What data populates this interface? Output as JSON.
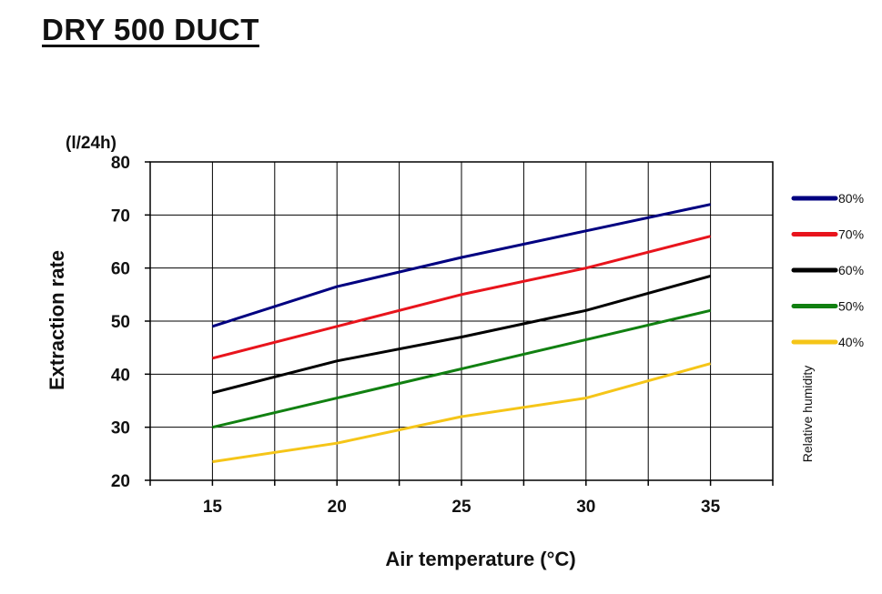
{
  "page": {
    "title": "DRY 500 DUCT"
  },
  "chart_data": {
    "type": "line",
    "title": "DRY 500 DUCT",
    "xlabel": "Air temperature (°C)",
    "ylabel": "Extraction rate",
    "yunit": "(l/24h)",
    "legend_title": "Relative humidity",
    "legend_position": "right",
    "grid": true,
    "x": [
      15,
      20,
      25,
      30,
      35
    ],
    "xlim": [
      12.5,
      37.5
    ],
    "ylim": [
      20,
      80
    ],
    "xticks": [
      "15",
      "20",
      "25",
      "30",
      "35"
    ],
    "yticks": [
      "20",
      "30",
      "40",
      "50",
      "60",
      "70",
      "80"
    ],
    "series": [
      {
        "name": "80%",
        "color": "#000080",
        "values": [
          49,
          56.5,
          62,
          67,
          72
        ]
      },
      {
        "name": "70%",
        "color": "#e8141c",
        "values": [
          43,
          49,
          55,
          60,
          66
        ]
      },
      {
        "name": "60%",
        "color": "#000000",
        "values": [
          36.5,
          42.5,
          47,
          52,
          58.5
        ]
      },
      {
        "name": "50%",
        "color": "#118011",
        "values": [
          30,
          35.5,
          41,
          46.5,
          52
        ]
      },
      {
        "name": "40%",
        "color": "#f5c518",
        "values": [
          23.5,
          27,
          32,
          35.5,
          42
        ]
      }
    ]
  }
}
